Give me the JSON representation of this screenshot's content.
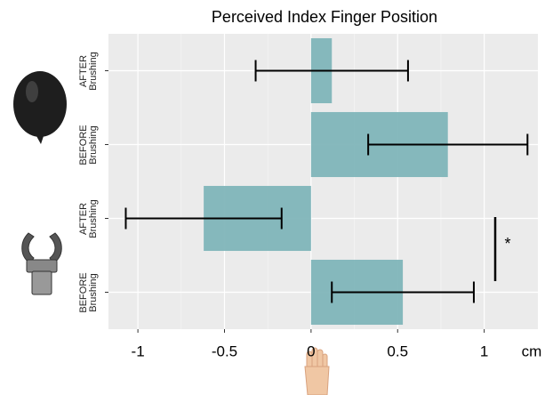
{
  "chart_data": {
    "type": "hbar_error",
    "title": "Perceived Index Finger Position",
    "x_label": "cm",
    "categories": [
      "AFTER Brushing",
      "BEFORE Brushing",
      "AFTER Brushing",
      "BEFORE Brushing"
    ],
    "values": [
      0.12,
      0.79,
      -0.62,
      0.53
    ],
    "errors": [
      0.44,
      0.46,
      0.45,
      0.41
    ],
    "color": "#7fb5b9",
    "xlim": [
      -1.17,
      1.31
    ],
    "xticks": [
      -1,
      -0.5,
      0,
      0.5,
      1
    ],
    "grid": true,
    "annotation": "*"
  }
}
